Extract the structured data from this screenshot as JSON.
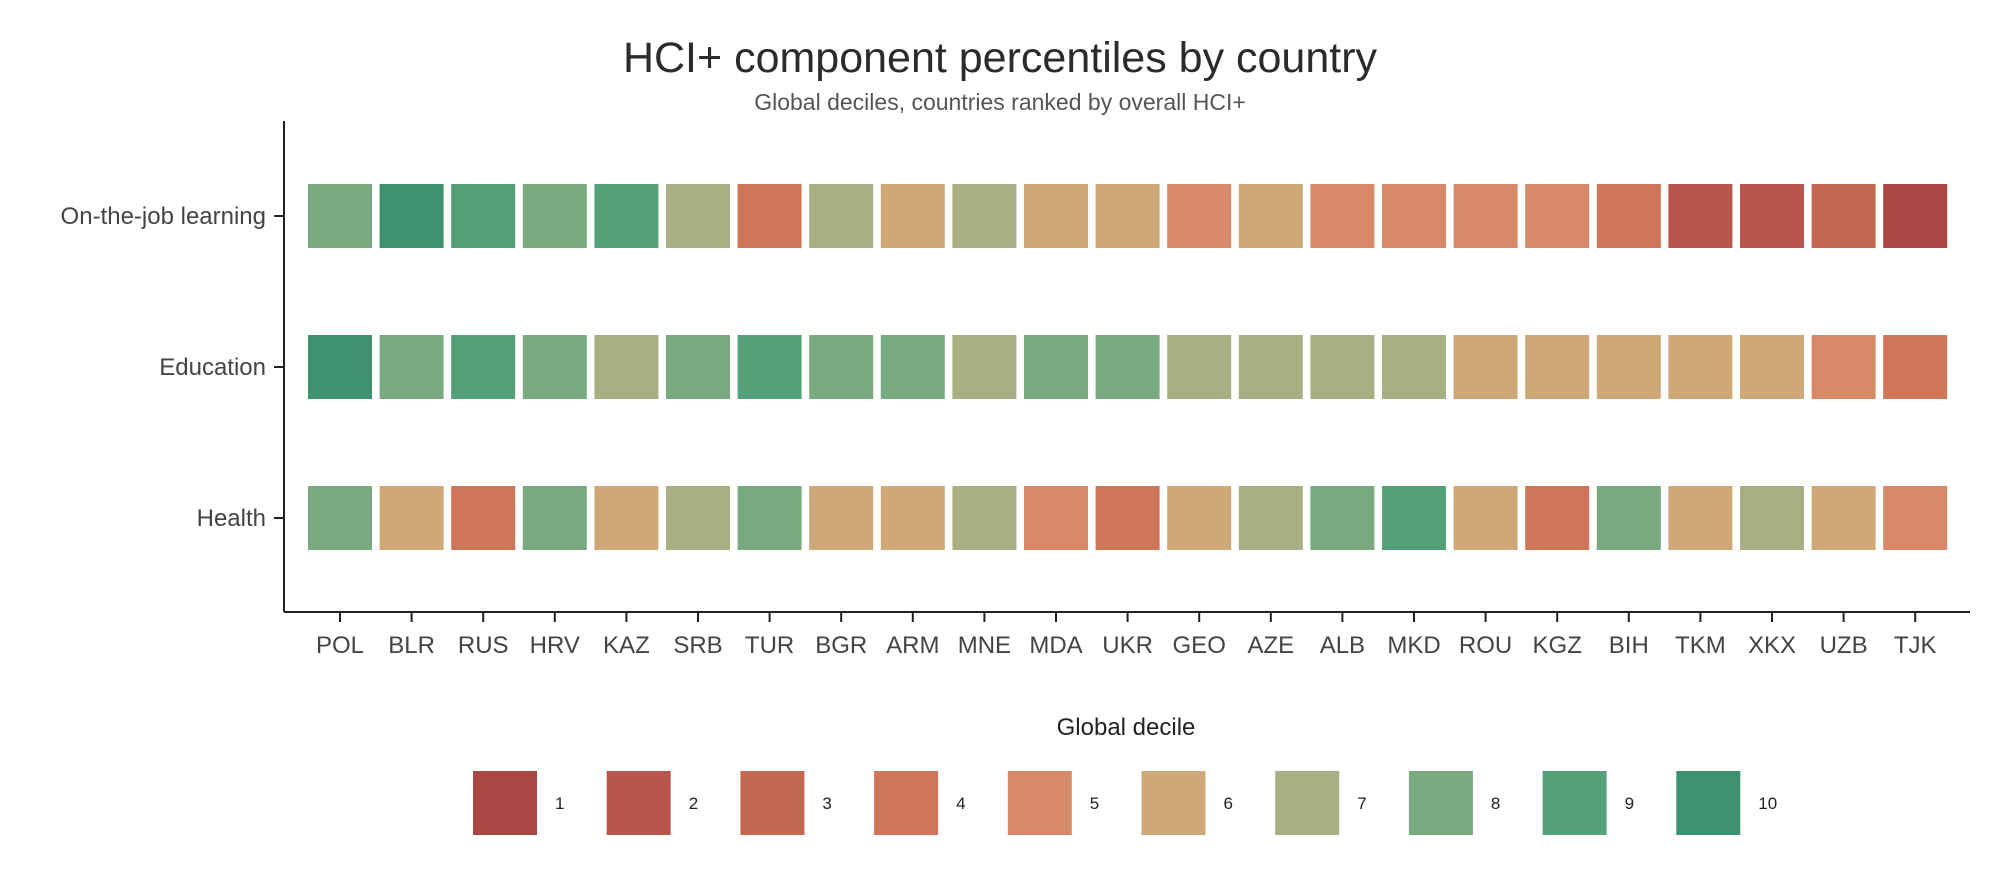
{
  "chart_data": {
    "type": "heatmap",
    "title": "HCI+ component percentiles by country",
    "subtitle": "Global deciles, countries ranked by overall HCI+",
    "categories": [
      "POL",
      "BLR",
      "RUS",
      "HRV",
      "KAZ",
      "SRB",
      "TUR",
      "BGR",
      "ARM",
      "MNE",
      "MDA",
      "UKR",
      "GEO",
      "AZE",
      "ALB",
      "MKD",
      "ROU",
      "KGZ",
      "BIH",
      "TKM",
      "XKX",
      "UZB",
      "TJK"
    ],
    "rows": [
      "On-the-job learning",
      "Education",
      "Health"
    ],
    "series": [
      {
        "name": "On-the-job learning",
        "values": [
          8,
          10,
          9,
          8,
          9,
          7,
          4,
          7,
          6,
          7,
          6,
          6,
          5,
          6,
          5,
          5,
          5,
          5,
          4,
          2,
          2,
          3,
          1
        ]
      },
      {
        "name": "Education",
        "values": [
          10,
          8,
          9,
          8,
          7,
          8,
          9,
          8,
          8,
          7,
          8,
          8,
          7,
          7,
          7,
          7,
          6,
          6,
          6,
          6,
          6,
          5,
          4
        ]
      },
      {
        "name": "Health",
        "values": [
          8,
          6,
          4,
          8,
          6,
          7,
          8,
          6,
          6,
          7,
          5,
          4,
          6,
          7,
          8,
          9,
          6,
          4,
          8,
          6,
          7,
          6,
          5
        ]
      }
    ],
    "legend": {
      "title": "Global decile",
      "position": "bottom",
      "levels": [
        {
          "label": "1",
          "color": "#AA4742"
        },
        {
          "label": "2",
          "color": "#B9554B"
        },
        {
          "label": "3",
          "color": "#C56852"
        },
        {
          "label": "4",
          "color": "#CF7658"
        },
        {
          "label": "5",
          "color": "#D78A68"
        },
        {
          "label": "6",
          "color": "#CFA878"
        },
        {
          "label": "7",
          "color": "#A8AF83"
        },
        {
          "label": "8",
          "color": "#78AA80"
        },
        {
          "label": "9",
          "color": "#54A078"
        },
        {
          "label": "10",
          "color": "#3F9270"
        }
      ]
    }
  }
}
